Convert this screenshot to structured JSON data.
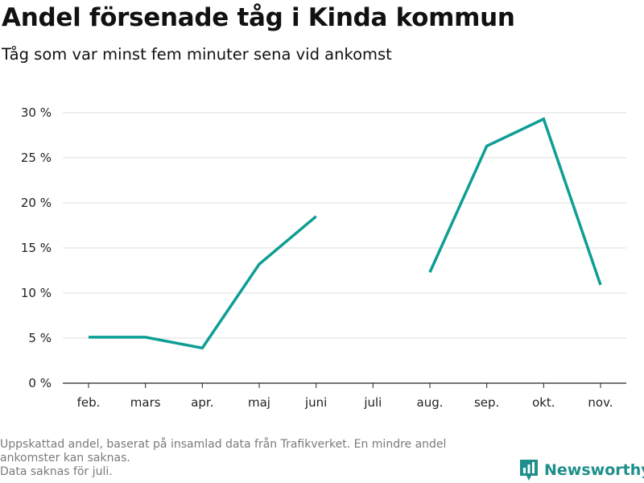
{
  "title": "Andel försenade tåg i Kinda kommun",
  "subtitle": "Tåg som var minst fem minuter sena vid ankomst",
  "footnote": [
    "Uppskattad andel, baserat på insamlad data från Trafikverket. En mindre andel",
    "ankomster kan saknas.",
    "Data saknas för juli."
  ],
  "logo": {
    "text": "Newsworthy",
    "icon": "bar-chart-pin-icon",
    "color": "#1f8f8b"
  },
  "chart_data": {
    "type": "line",
    "title": "Andel försenade tåg i Kinda kommun",
    "subtitle": "Tåg som var minst fem minuter sena vid ankomst",
    "xlabel": "",
    "ylabel": "",
    "categories": [
      "feb.",
      "mars",
      "apr.",
      "maj",
      "juni",
      "juli",
      "aug.",
      "sep.",
      "okt.",
      "nov."
    ],
    "series": [
      {
        "values": [
          5.1,
          5.1,
          3.9,
          13.2,
          18.5,
          null,
          12.3,
          26.3,
          29.3,
          10.9
        ],
        "color": "#0d9e94"
      }
    ],
    "ylim": [
      0,
      30
    ],
    "yticks": [
      0,
      5,
      10,
      15,
      20,
      25,
      30
    ],
    "ytick_labels": [
      "0 %",
      "5 %",
      "10 %",
      "15 %",
      "20 %",
      "25 %",
      "30 %"
    ],
    "grid": true,
    "legend": "none"
  }
}
